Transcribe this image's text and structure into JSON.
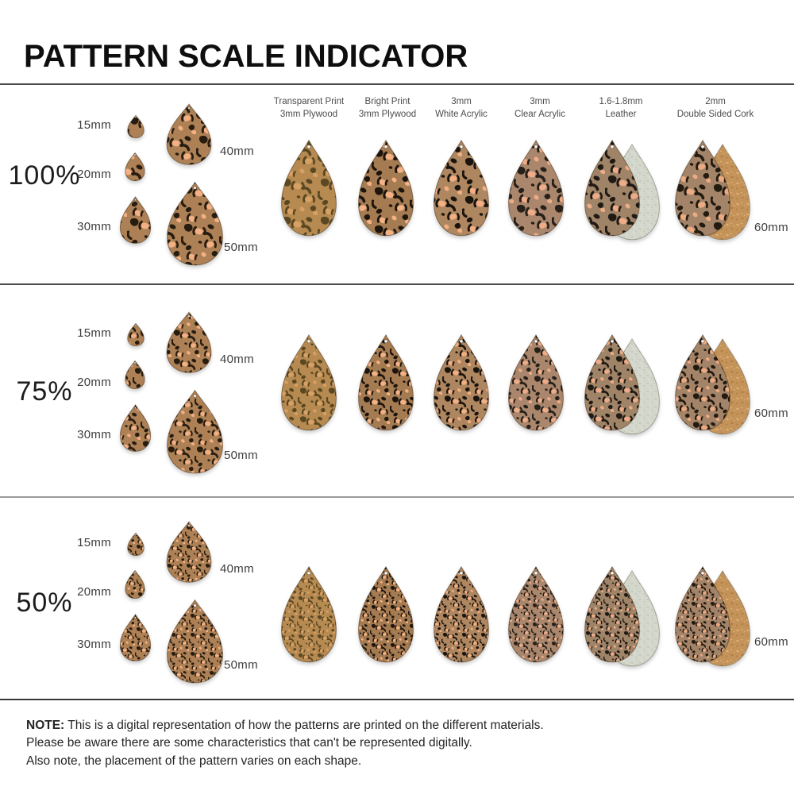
{
  "title": "PATTERN SCALE INDICATOR",
  "rows": [
    {
      "id": "100pct",
      "scale_label": "100%",
      "scale_factor": 1.0,
      "sizes": [
        "15mm",
        "20mm",
        "30mm",
        "40mm",
        "50mm"
      ],
      "right_size_label": "60mm"
    },
    {
      "id": "75pct",
      "scale_label": "75%",
      "scale_factor": 0.75,
      "sizes": [
        "15mm",
        "20mm",
        "30mm",
        "40mm",
        "50mm"
      ],
      "right_size_label": "60mm"
    },
    {
      "id": "50pct",
      "scale_label": "50%",
      "scale_factor": 0.5,
      "sizes": [
        "15mm",
        "20mm",
        "30mm",
        "40mm",
        "50mm"
      ],
      "right_size_label": "60mm"
    }
  ],
  "materials": [
    {
      "id": "transparent-print-3mm-plywood",
      "label_line1": "Transparent Print",
      "label_line2": "3mm Plywood",
      "bg": "#b68a50",
      "dark": "#5a4823",
      "light": "#d7a064",
      "backing": null
    },
    {
      "id": "bright-print-3mm-plywood",
      "label_line1": "Bright Print",
      "label_line2": "3mm Plywood",
      "bg": "#a57b52",
      "dark": "#1c140d",
      "light": "#f4b185",
      "backing": null
    },
    {
      "id": "3mm-white-acrylic",
      "label_line1": "3mm",
      "label_line2": "White Acrylic",
      "bg": "#ae8660",
      "dark": "#1a140f",
      "light": "#f3af82",
      "backing": null
    },
    {
      "id": "3mm-clear-acrylic",
      "label_line1": "3mm",
      "label_line2": "Clear Acrylic",
      "bg": "#a9866c",
      "dark": "#27201a",
      "light": "#efac88",
      "backing": null
    },
    {
      "id": "leather",
      "label_line1": "1.6-1.8mm",
      "label_line2": "Leather",
      "bg": "#a08468",
      "dark": "#201a15",
      "light": "#eeab88",
      "backing": "suede"
    },
    {
      "id": "double-sided-cork",
      "label_line1": "2mm",
      "label_line2": "Double Sided Cork",
      "bg": "#a48469",
      "dark": "#231a10",
      "light": "#ebaa82",
      "backing": "cork"
    }
  ],
  "left_drop_colors": {
    "bg": "#ad8155",
    "dark": "#271c10",
    "light": "#f3b084"
  },
  "backing_colors": {
    "suede_bg": "#d4d7cc",
    "suede_dot": "#b9bdb0",
    "suede_dot_light": "#e5e7de",
    "cork_bg": "#c4935a",
    "cork_fleck_light": "#dcb076",
    "cork_fleck_dark": "#aa7a40"
  },
  "note": {
    "bold": "NOTE:",
    "lines": [
      "This is a digital representation of how the patterns are printed on the different materials.",
      "Please be aware there are some characteristics that can't be represented digitally.",
      "Also note, the placement of the pattern varies on each shape."
    ]
  }
}
